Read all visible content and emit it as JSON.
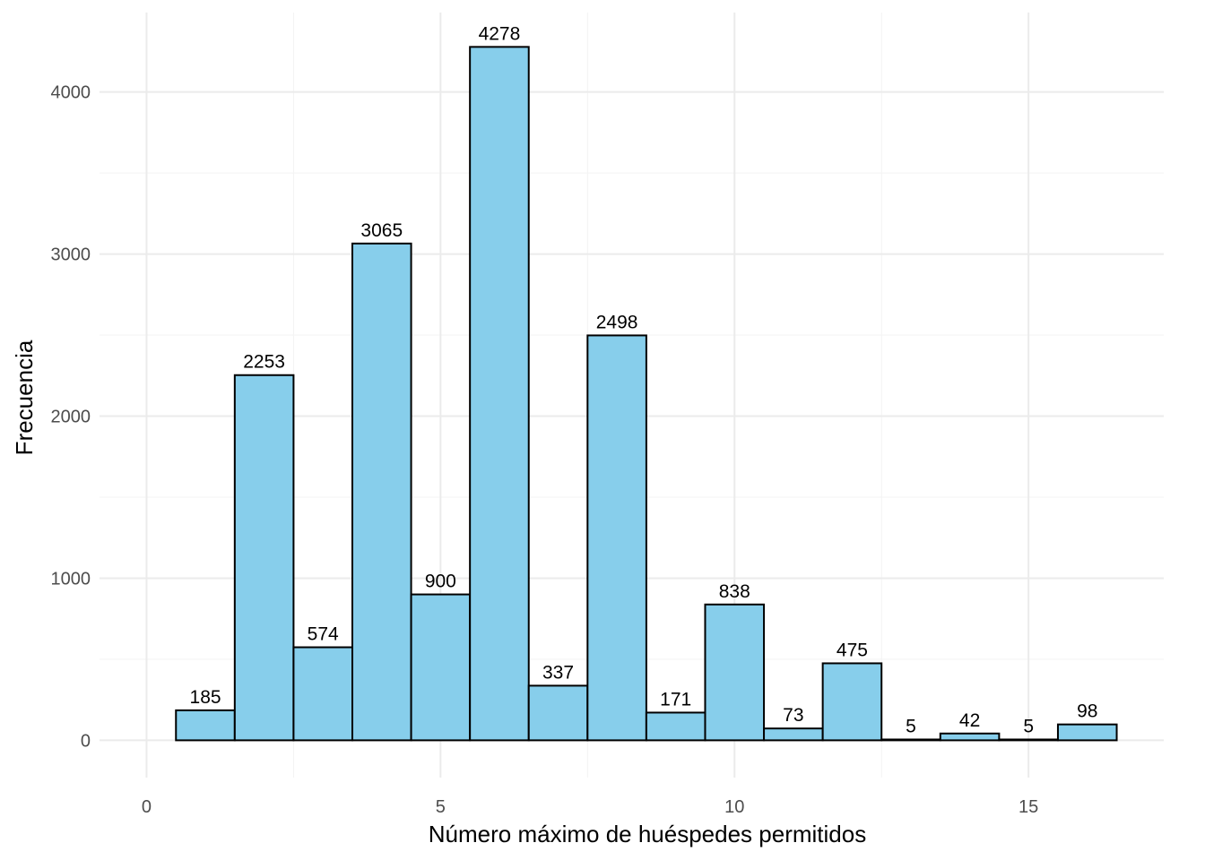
{
  "chart_data": {
    "type": "bar",
    "bins": [
      1,
      2,
      3,
      4,
      5,
      6,
      7,
      8,
      9,
      10,
      11,
      12,
      13,
      14,
      15,
      16
    ],
    "values": [
      185,
      2253,
      574,
      3065,
      900,
      4278,
      337,
      2498,
      171,
      838,
      73,
      475,
      5,
      42,
      5,
      98
    ],
    "bar_labels": [
      "185",
      "2253",
      "574",
      "3065",
      "900",
      "4278",
      "337",
      "2498",
      "171",
      "838",
      "73",
      "475",
      "5",
      "42",
      "5",
      "98"
    ],
    "bin_width": 1,
    "xlabel": "Número máximo de huéspedes permitidos",
    "ylabel": "Frecuencia",
    "xlim": [
      -0.8,
      17.3
    ],
    "ylim": [
      -230,
      4490
    ],
    "x_ticks": [
      0,
      5,
      10,
      15
    ],
    "x_tick_labels": [
      "0",
      "5",
      "10",
      "15"
    ],
    "y_ticks": [
      0,
      1000,
      2000,
      3000,
      4000
    ],
    "y_tick_labels": [
      "0",
      "1000",
      "2000",
      "3000",
      "4000"
    ],
    "grid": true,
    "legend": "none",
    "colors": {
      "bar_fill": "#87CEEB",
      "bar_stroke": "#000000",
      "grid": "#EBEBEB",
      "tick_text": "#4D4D4D"
    }
  }
}
